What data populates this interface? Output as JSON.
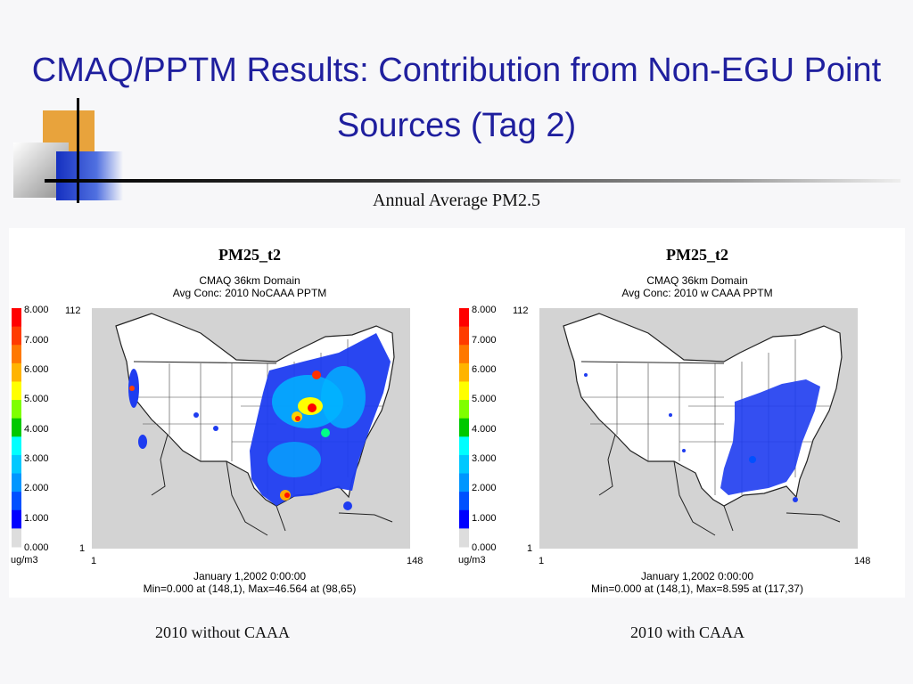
{
  "slide": {
    "title_line1": "CMAQ/PPTM Results: Contribution from Non-EGU Point",
    "title_line2": "Sources (Tag 2)",
    "subtitle": "Annual Average PM2.5"
  },
  "colors": {
    "title": "#1f1f9e",
    "deco_orange": "#e8a33c",
    "deco_blue": "#2040c0",
    "deco_gray": "#b0b0b0",
    "map_background": "#d3d3d3",
    "land": "#ffffff"
  },
  "colorbar": {
    "labels": [
      "8.000",
      "7.000",
      "6.000",
      "5.000",
      "4.000",
      "3.000",
      "2.000",
      "1.000",
      "0.000"
    ],
    "unit": "ug/m3",
    "colors": [
      "#ff0000",
      "#ff3c00",
      "#ff7800",
      "#ffb400",
      "#ffff00",
      "#7fff00",
      "#00c800",
      "#00ffff",
      "#00c8ff",
      "#0096ff",
      "#0050ff",
      "#0000ff",
      "#dddddd"
    ]
  },
  "maps": [
    {
      "name": "PM25_t2",
      "domain": "CMAQ 36km Domain",
      "avg_conc": "Avg Conc: 2010 NoCAAA PPTM",
      "y_top": "112",
      "y_bottom": "1",
      "x_left": "1",
      "x_right": "148",
      "date": "January 1,2002 0:00:00",
      "minmax": "Min=0.000 at (148,1), Max=46.564 at (98,65)",
      "caption": "2010 without CAAA",
      "coverage": "wide"
    },
    {
      "name": "PM25_t2",
      "domain": "CMAQ 36km Domain",
      "avg_conc": "Avg Conc: 2010 w CAAA PPTM",
      "y_top": "112",
      "y_bottom": "1",
      "x_left": "1",
      "x_right": "148",
      "date": "January 1,2002 0:00:00",
      "minmax": "Min=0.000 at (148,1), Max=8.595 at (117,37)",
      "caption": "2010 with CAAA",
      "coverage": "narrow"
    }
  ]
}
